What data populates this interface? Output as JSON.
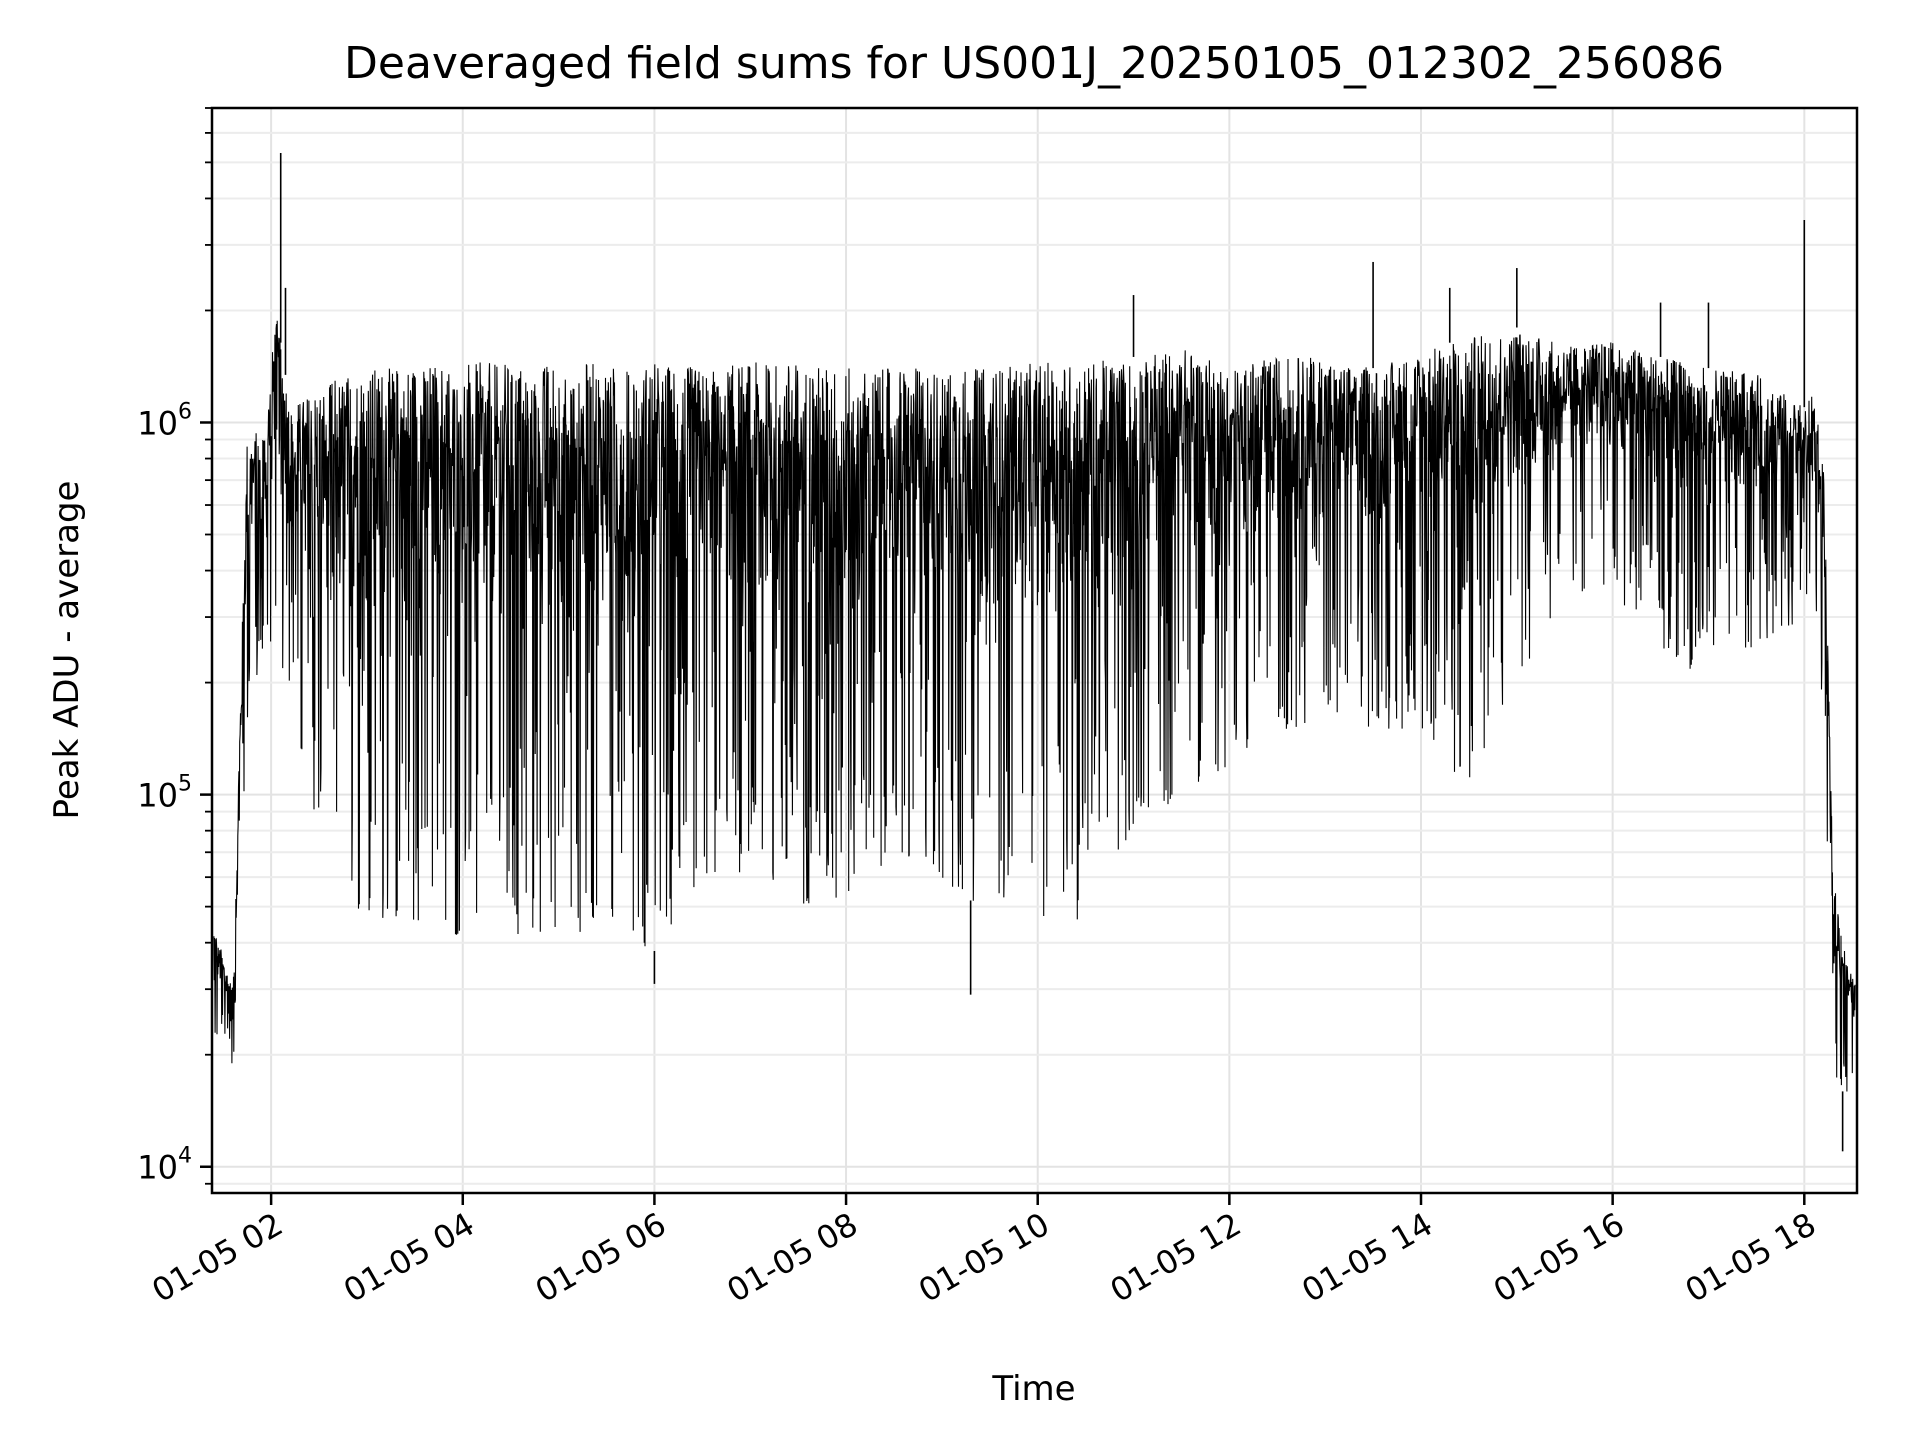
{
  "chart_data": {
    "type": "line",
    "title": "Deaveraged field sums for US001J_20250105_012302_256086",
    "xlabel": "Time",
    "ylabel": "Peak ADU - average",
    "x_ticks": [
      "01-05 02",
      "01-05 04",
      "01-05 06",
      "01-05 08",
      "01-05 10",
      "01-05 12",
      "01-05 14",
      "01-05 16",
      "01-05 18"
    ],
    "x_tick_hours": [
      2,
      4,
      6,
      8,
      10,
      12,
      14,
      16,
      18
    ],
    "xlim_hours": [
      1.383,
      18.55
    ],
    "y_scale": "log",
    "ylim": [
      8500,
      7000000
    ],
    "y_ticks": [
      {
        "base": "10",
        "exp": "4",
        "value": 10000
      },
      {
        "base": "10",
        "exp": "5",
        "value": 100000
      },
      {
        "base": "10",
        "exp": "6",
        "value": 1000000
      }
    ],
    "grid": true,
    "color": "#000000",
    "envelope_hours": [
      1.4,
      1.6,
      1.75,
      1.95,
      2.05,
      2.2,
      2.6,
      3.0,
      3.5,
      4.0,
      4.5,
      5.0,
      5.5,
      6.0,
      6.5,
      7.0,
      7.5,
      8.0,
      8.5,
      9.0,
      9.5,
      10.0,
      10.5,
      11.0,
      11.5,
      12.0,
      12.5,
      13.0,
      13.5,
      14.0,
      14.5,
      15.0,
      15.5,
      16.0,
      16.5,
      17.0,
      17.5,
      18.0,
      18.1,
      18.2,
      18.3,
      18.45,
      18.55
    ],
    "envelope_low": [
      22000,
      17000,
      150000,
      220000,
      300000,
      150000,
      60000,
      45000,
      45000,
      40000,
      40000,
      42000,
      42000,
      38000,
      60000,
      60000,
      50000,
      50000,
      60000,
      55000,
      50000,
      45000,
      45000,
      80000,
      100000,
      120000,
      150000,
      150000,
      150000,
      150000,
      100000,
      200000,
      350000,
      350000,
      250000,
      200000,
      250000,
      300000,
      400000,
      150000,
      18000,
      15000,
      20000
    ],
    "envelope_high": [
      45000,
      30000,
      900000,
      1000000,
      2000000,
      1100000,
      1300000,
      1400000,
      1450000,
      1450000,
      1450000,
      1450000,
      1450000,
      1450000,
      1400000,
      1450000,
      1450000,
      1400000,
      1400000,
      1400000,
      1400000,
      1450000,
      1450000,
      1500000,
      1600000,
      1400000,
      1500000,
      1500000,
      1400000,
      1550000,
      1700000,
      1800000,
      1600000,
      1650000,
      1500000,
      1400000,
      1350000,
      1100000,
      1200000,
      800000,
      60000,
      35000,
      30000
    ],
    "spikes": [
      {
        "hour": 2.1,
        "value": 5300000
      },
      {
        "hour": 2.15,
        "value": 2300000
      },
      {
        "hour": 11.0,
        "value": 2200000
      },
      {
        "hour": 13.5,
        "value": 2700000
      },
      {
        "hour": 15.0,
        "value": 2600000
      },
      {
        "hour": 14.3,
        "value": 2300000
      },
      {
        "hour": 16.5,
        "value": 2100000
      },
      {
        "hour": 17.0,
        "value": 2100000
      },
      {
        "hour": 18.0,
        "value": 3500000
      },
      {
        "hour": 9.3,
        "value": 29000
      },
      {
        "hour": 6.0,
        "value": 31000
      },
      {
        "hour": 18.4,
        "value": 11000
      }
    ]
  }
}
